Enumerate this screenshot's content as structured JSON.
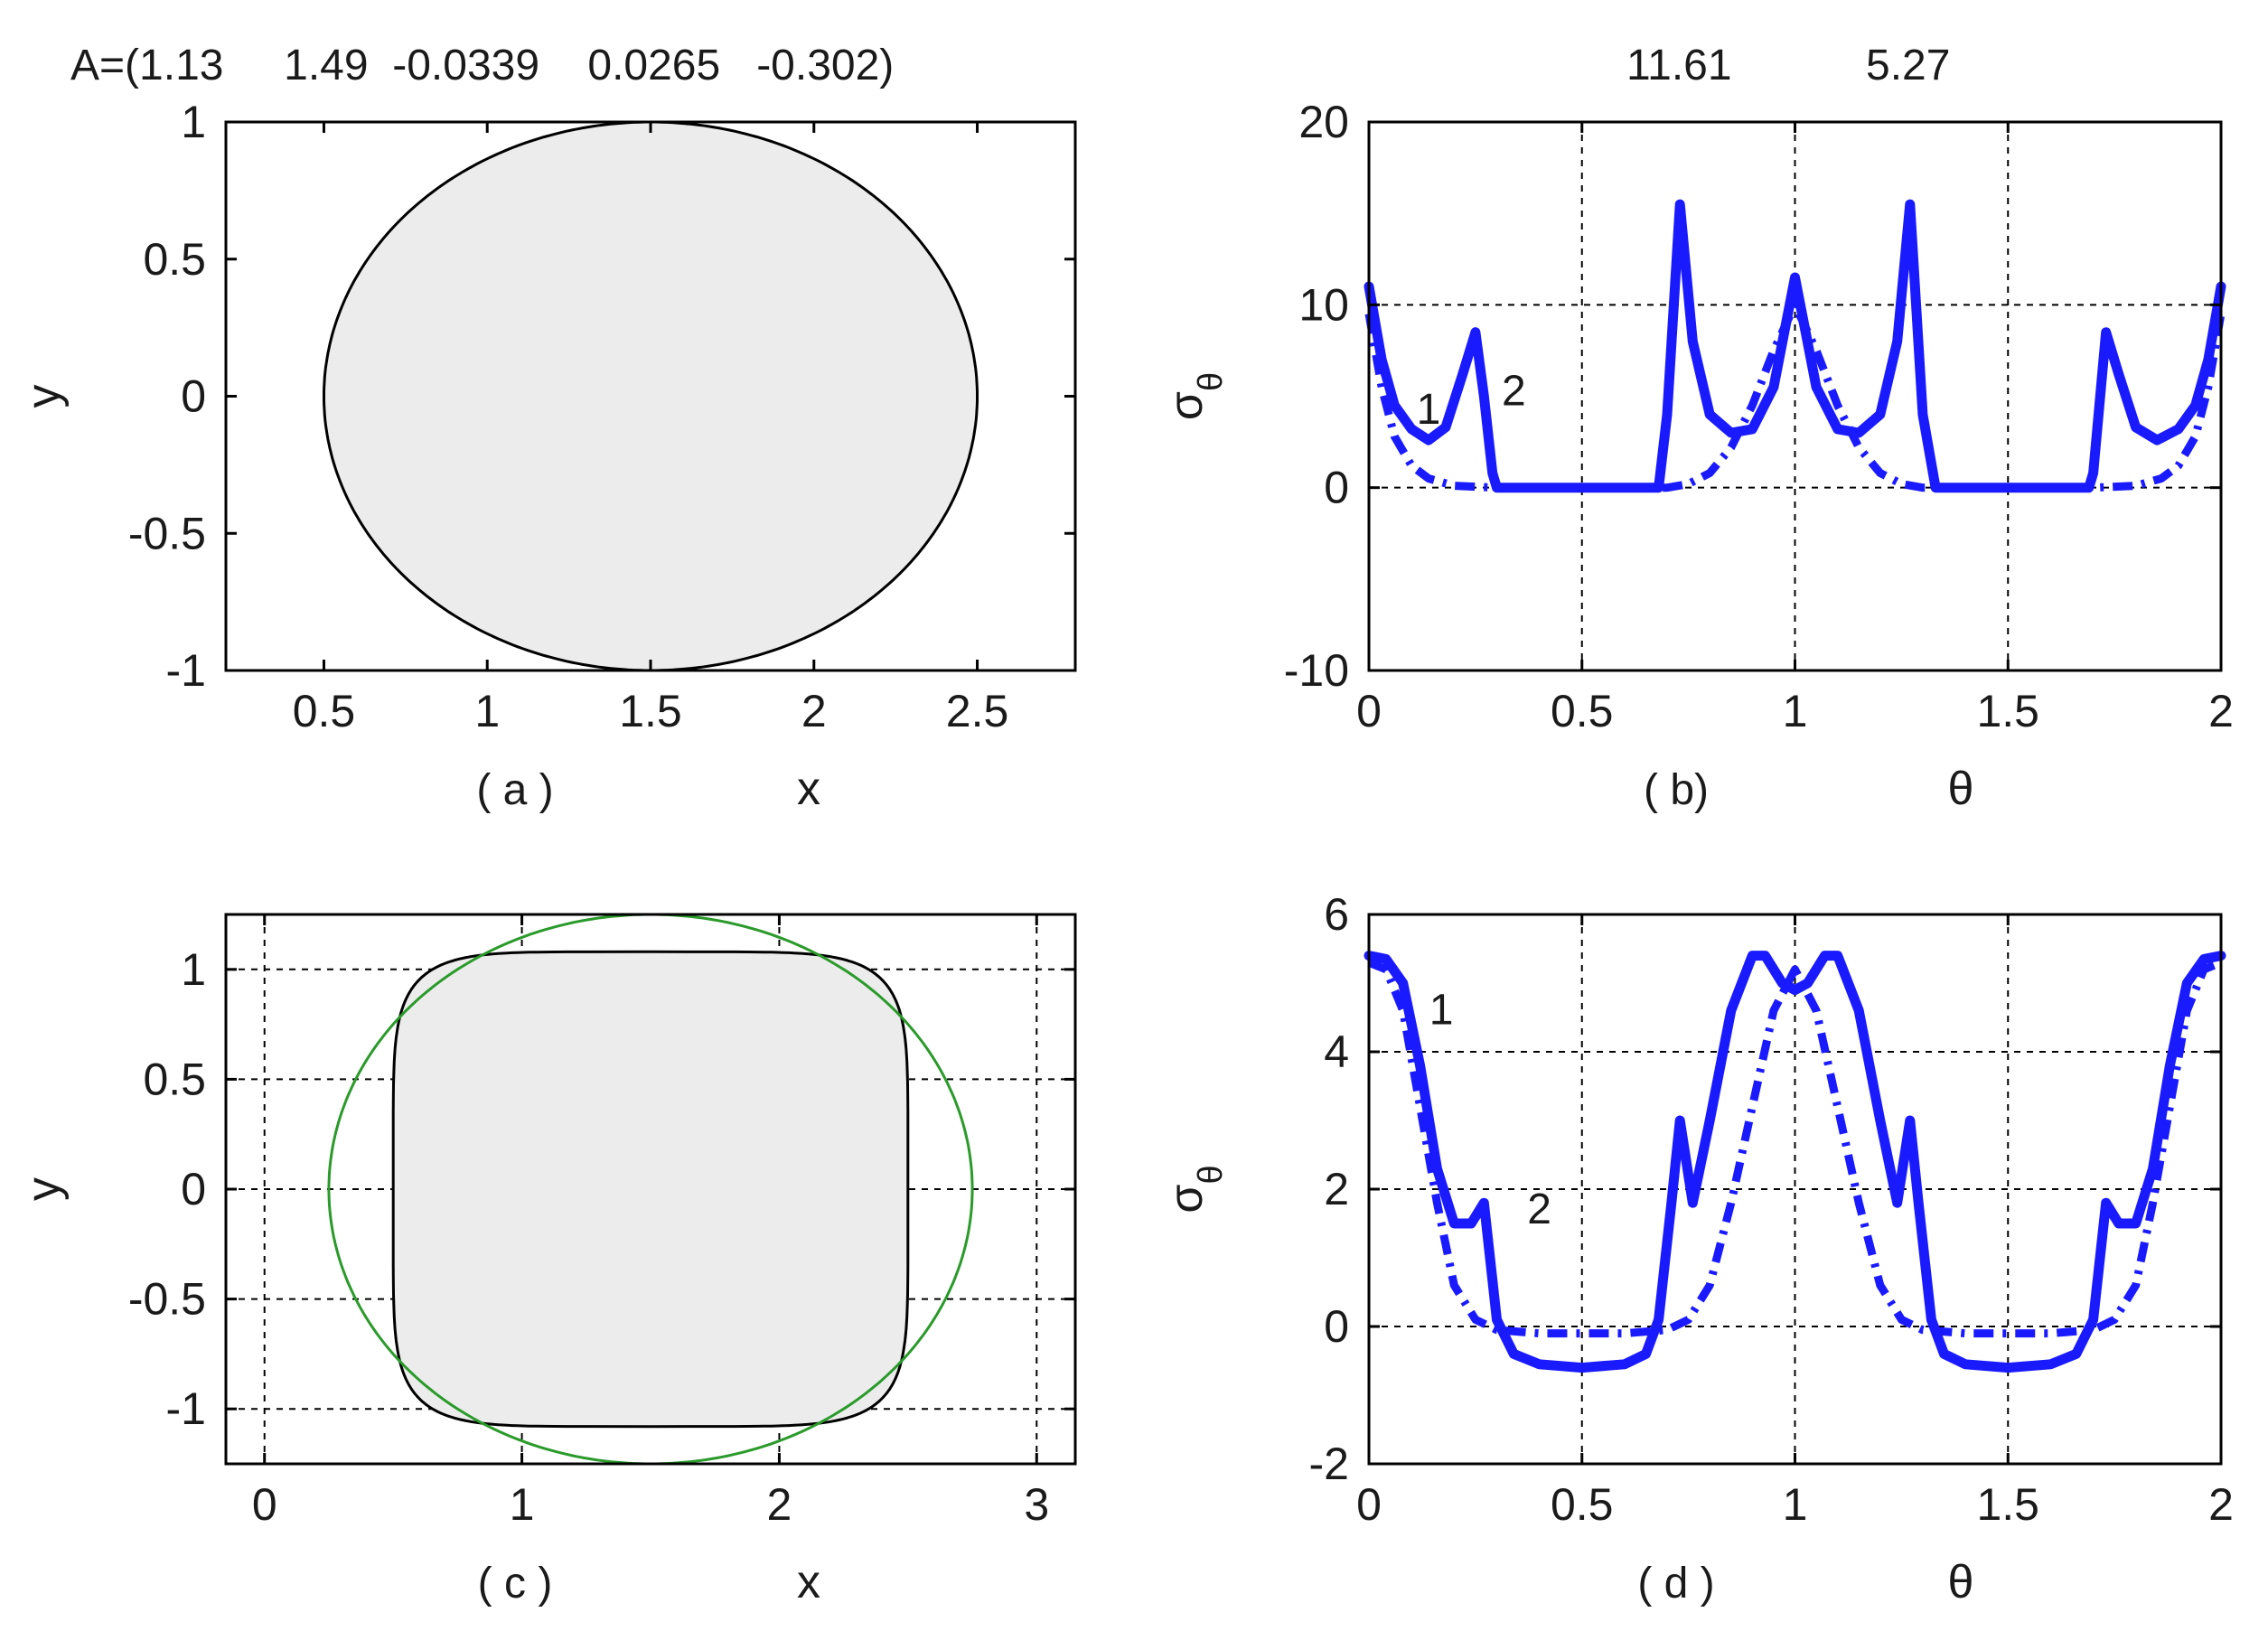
{
  "header": {
    "coefficients": "A=(1.13     1.49  -0.0339    0.0265   -0.302)",
    "value_1": "11.61",
    "value_2": "5.27"
  },
  "colors": {
    "fill": "#ececec",
    "outline": "#000000",
    "circle": "#2a9a2a",
    "curve": "#1a1aff"
  },
  "chart_data": [
    {
      "id": "a",
      "type": "area",
      "panel_tag": "( a )",
      "xlabel": "x",
      "ylabel": "y",
      "xlim": [
        0.2,
        2.8
      ],
      "ylim": [
        -1,
        1
      ],
      "xticks": [
        0.5,
        1,
        1.5,
        2,
        2.5
      ],
      "xtick_labels": [
        "0.5",
        "1",
        "1.5",
        "2",
        "2.5"
      ],
      "yticks": [
        1,
        0.5,
        0,
        -0.5,
        -1
      ],
      "ytick_labels": [
        "1",
        "0.5",
        "0",
        "-0.5",
        "-1"
      ],
      "grid": false,
      "shape": {
        "kind": "ellipse",
        "center": [
          1.5,
          0
        ],
        "radii": [
          1.0,
          1.0
        ]
      }
    },
    {
      "id": "b",
      "type": "line",
      "panel_tag": "( b)",
      "xlabel": "θ",
      "ylabel": "σθ",
      "xlim": [
        0,
        2
      ],
      "ylim": [
        -10,
        20
      ],
      "xticks": [
        0,
        0.5,
        1,
        1.5,
        2
      ],
      "xtick_labels": [
        "0",
        "0.5",
        "1",
        "1.5",
        "2"
      ],
      "yticks": [
        20,
        10,
        0,
        -10
      ],
      "ytick_labels": [
        "20",
        "10",
        "0",
        "-10"
      ],
      "grid": true,
      "curve_labels": [
        {
          "text": "1",
          "x": 0.14,
          "y": 3.5
        },
        {
          "text": "2",
          "x": 0.34,
          "y": 4.5
        }
      ],
      "series": [
        {
          "style": "solid",
          "x": [
            0,
            0.03,
            0.06,
            0.1,
            0.14,
            0.18,
            0.22,
            0.25,
            0.27,
            0.29,
            0.3,
            0.5,
            0.68,
            0.7,
            0.73,
            0.76,
            0.8,
            0.85,
            0.9,
            0.95,
            1.0,
            1.05,
            1.1,
            1.15,
            1.2,
            1.24,
            1.27,
            1.3,
            1.33,
            1.5,
            1.69,
            1.7,
            1.73,
            1.76,
            1.8,
            1.85,
            1.9,
            1.94,
            1.97,
            2.0
          ],
          "y": [
            11,
            7,
            4.5,
            3.2,
            2.6,
            3.3,
            6.2,
            8.5,
            5,
            0.8,
            0,
            0,
            0,
            4,
            15.5,
            8,
            4,
            3,
            3.2,
            5.5,
            11.5,
            5.5,
            3.2,
            3,
            4,
            8,
            15.5,
            4,
            0,
            0,
            0,
            0.8,
            8.5,
            6.2,
            3.3,
            2.6,
            3.2,
            4.5,
            7,
            11
          ]
        },
        {
          "style": "dashdot",
          "x": [
            0,
            0.03,
            0.06,
            0.1,
            0.14,
            0.2,
            0.3,
            0.5,
            0.7,
            0.75,
            0.8,
            0.85,
            0.9,
            0.95,
            1.0,
            1.05,
            1.1,
            1.15,
            1.2,
            1.25,
            1.3,
            1.5,
            1.7,
            1.8,
            1.86,
            1.9,
            1.94,
            1.97,
            2.0
          ],
          "y": [
            9.5,
            5.5,
            2.8,
            1.2,
            0.5,
            0.1,
            0,
            0,
            0,
            0.2,
            0.8,
            2.2,
            4.5,
            7.5,
            10,
            7.5,
            4.5,
            2.2,
            0.8,
            0.2,
            0,
            0,
            0,
            0.1,
            0.5,
            1.2,
            2.8,
            5.5,
            9.5
          ]
        }
      ]
    },
    {
      "id": "c",
      "type": "area",
      "panel_tag": "( c )",
      "xlabel": "x",
      "ylabel": "y",
      "xlim": [
        -0.15,
        3.15
      ],
      "ylim": [
        -1.25,
        1.25
      ],
      "xticks": [
        0,
        1,
        2,
        3
      ],
      "xtick_labels": [
        "0",
        "1",
        "2",
        "3"
      ],
      "yticks": [
        1,
        0.5,
        0,
        -0.5,
        -1
      ],
      "ytick_labels": [
        "1",
        "0.5",
        "0",
        "-0.5",
        "-1"
      ],
      "grid": true,
      "shape": {
        "kind": "superellipse",
        "center": [
          1.5,
          0
        ],
        "radii": [
          1.0,
          1.08
        ],
        "exponent": 6
      },
      "circle": {
        "center": [
          1.5,
          0
        ],
        "radius": 1.25
      }
    },
    {
      "id": "d",
      "type": "line",
      "panel_tag": "( d )",
      "xlabel": "θ",
      "ylabel": "σθ",
      "xlim": [
        0,
        2
      ],
      "ylim": [
        -2,
        6
      ],
      "xticks": [
        0,
        0.5,
        1,
        1.5,
        2
      ],
      "xtick_labels": [
        "0",
        "0.5",
        "1",
        "1.5",
        "2"
      ],
      "yticks": [
        6,
        4,
        2,
        0,
        -2
      ],
      "ytick_labels": [
        "6",
        "4",
        "2",
        "0",
        "-2"
      ],
      "grid": true,
      "curve_labels": [
        {
          "text": "1",
          "x": 0.17,
          "y": 4.4
        },
        {
          "text": "2",
          "x": 0.4,
          "y": 1.5
        }
      ],
      "series": [
        {
          "style": "solid",
          "x": [
            0,
            0.04,
            0.08,
            0.12,
            0.16,
            0.2,
            0.24,
            0.27,
            0.3,
            0.34,
            0.4,
            0.5,
            0.6,
            0.65,
            0.68,
            0.71,
            0.73,
            0.76,
            0.8,
            0.85,
            0.9,
            0.93,
            0.97,
            1.0,
            1.03,
            1.07,
            1.1,
            1.15,
            1.2,
            1.24,
            1.27,
            1.29,
            1.32,
            1.35,
            1.4,
            1.5,
            1.6,
            1.66,
            1.7,
            1.73,
            1.76,
            1.8,
            1.84,
            1.88,
            1.92,
            1.96,
            2.0
          ],
          "y": [
            5.4,
            5.35,
            5.0,
            3.8,
            2.3,
            1.5,
            1.5,
            1.8,
            0.1,
            -0.4,
            -0.55,
            -0.6,
            -0.55,
            -0.4,
            0.1,
            1.8,
            3.0,
            1.8,
            3.0,
            4.6,
            5.4,
            5.4,
            5.0,
            4.9,
            5.0,
            5.4,
            5.4,
            4.6,
            3.0,
            1.8,
            3.0,
            1.8,
            0.1,
            -0.4,
            -0.55,
            -0.6,
            -0.55,
            -0.4,
            0.1,
            1.8,
            1.5,
            1.5,
            2.3,
            3.8,
            5.0,
            5.35,
            5.4
          ]
        },
        {
          "style": "dashdot",
          "x": [
            0,
            0.04,
            0.08,
            0.12,
            0.16,
            0.2,
            0.25,
            0.3,
            0.4,
            0.5,
            0.6,
            0.7,
            0.75,
            0.8,
            0.85,
            0.9,
            0.95,
            1.0,
            1.05,
            1.1,
            1.15,
            1.2,
            1.25,
            1.3,
            1.4,
            1.5,
            1.6,
            1.7,
            1.75,
            1.8,
            1.84,
            1.88,
            1.92,
            1.96,
            2.0
          ],
          "y": [
            5.3,
            5.2,
            4.6,
            3.2,
            1.8,
            0.6,
            0.1,
            -0.05,
            -0.1,
            -0.1,
            -0.1,
            -0.05,
            0.1,
            0.6,
            1.8,
            3.2,
            4.6,
            5.2,
            4.6,
            3.2,
            1.8,
            0.6,
            0.1,
            -0.05,
            -0.1,
            -0.1,
            -0.1,
            -0.05,
            0.1,
            0.6,
            1.8,
            3.2,
            4.6,
            5.2,
            5.3
          ]
        }
      ]
    }
  ]
}
